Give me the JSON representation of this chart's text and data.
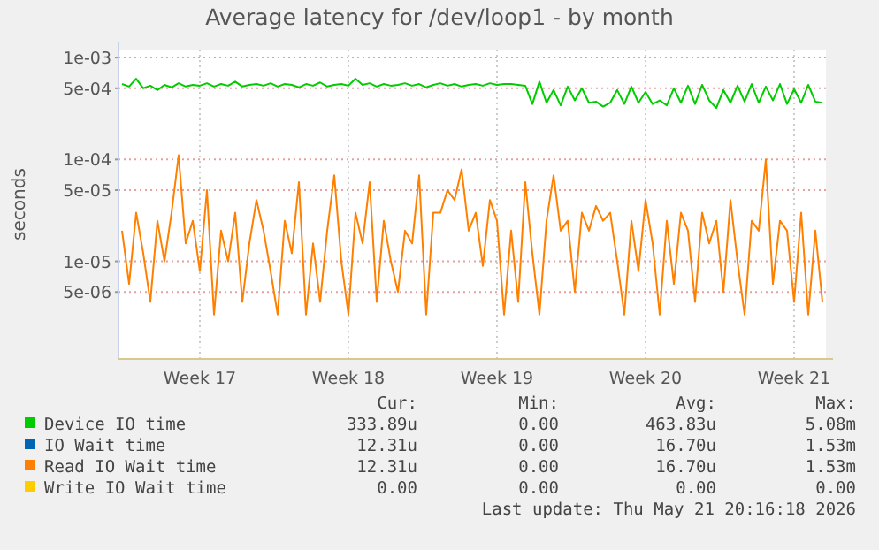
{
  "chart_data": {
    "type": "line",
    "title": "Average latency for /dev/loop1 - by month",
    "ylabel": "seconds",
    "log": "y",
    "grid": true,
    "legend": "bottom",
    "marker": "none",
    "line_style": "solid",
    "categories": [
      null,
      null,
      null,
      null,
      null,
      null,
      null,
      null,
      null,
      null,
      null,
      "Week 17",
      null,
      null,
      null,
      null,
      null,
      null,
      null,
      null,
      null,
      null,
      null,
      null,
      null,
      null,
      null,
      null,
      null,
      null,
      null,
      null,
      "Week 18",
      null,
      null,
      null,
      null,
      null,
      null,
      null,
      null,
      null,
      null,
      null,
      null,
      null,
      null,
      null,
      null,
      null,
      null,
      null,
      null,
      "Week 19",
      null,
      null,
      null,
      null,
      null,
      null,
      null,
      null,
      null,
      null,
      null,
      null,
      null,
      null,
      null,
      null,
      null,
      null,
      null,
      null,
      "Week 20",
      null,
      null,
      null,
      null,
      null,
      null,
      null,
      null,
      null,
      null,
      null,
      null,
      null,
      null,
      null,
      null,
      null,
      null,
      null,
      null,
      "Week 21",
      null,
      null,
      null,
      null
    ],
    "ylim": [
      1.1e-06,
      0.0012
    ],
    "yticks": [
      {
        "value": 0.001,
        "label": "1e-03"
      },
      {
        "value": 0.0005,
        "label": "5e-04"
      },
      {
        "value": 0.0001,
        "label": "1e-04"
      },
      {
        "value": 5e-05,
        "label": "5e-05"
      },
      {
        "value": 1e-05,
        "label": "1e-05"
      },
      {
        "value": 5e-06,
        "label": "5e-06"
      }
    ],
    "series": [
      {
        "name": "Device IO time",
        "color": "#00cc00",
        "values": [
          0.00055,
          0.00052,
          0.00062,
          0.0005,
          0.00053,
          0.00048,
          0.00054,
          0.00051,
          0.00056,
          0.00052,
          0.00054,
          0.00053,
          0.00056,
          0.00052,
          0.00055,
          0.00053,
          0.00058,
          0.00052,
          0.00054,
          0.00055,
          0.00053,
          0.00056,
          0.00052,
          0.00055,
          0.00054,
          0.00051,
          0.00055,
          0.00053,
          0.00057,
          0.00052,
          0.00054,
          0.00055,
          0.00053,
          0.00062,
          0.00054,
          0.00056,
          0.00052,
          0.00055,
          0.00053,
          0.00054,
          0.00056,
          0.00053,
          0.00055,
          0.00051,
          0.00054,
          0.00056,
          0.00053,
          0.00055,
          0.00052,
          0.00054,
          0.00055,
          0.00053,
          0.00056,
          0.00054,
          0.00055,
          0.00055,
          0.00054,
          0.00053,
          0.00035,
          0.00058,
          0.00036,
          0.00048,
          0.00034,
          0.00052,
          0.00038,
          0.0005,
          0.00036,
          0.00037,
          0.00033,
          0.00036,
          0.00048,
          0.00035,
          0.00052,
          0.00036,
          0.00046,
          0.00035,
          0.00038,
          0.00034,
          0.0005,
          0.00036,
          0.00053,
          0.00035,
          0.00054,
          0.00038,
          0.00032,
          0.00048,
          0.00036,
          0.00053,
          0.00037,
          0.00055,
          0.00036,
          0.00052,
          0.00038,
          0.00055,
          0.00035,
          0.00049,
          0.00036,
          0.00054,
          0.00037,
          0.00036
        ]
      },
      {
        "name": "IO Wait time",
        "color": "#0066b3",
        "values": [
          null,
          null,
          null,
          null,
          null,
          null,
          null,
          null,
          null,
          null,
          null,
          null,
          null,
          null,
          null,
          null,
          null,
          null,
          null,
          null,
          null,
          null,
          null,
          null,
          null,
          null,
          null,
          null,
          null,
          null,
          null,
          null,
          null,
          null,
          null,
          null,
          null,
          null,
          null,
          null,
          null,
          null,
          null,
          null,
          null,
          null,
          null,
          null,
          null,
          null,
          null,
          null,
          null,
          null,
          null,
          null,
          null,
          null,
          null,
          null,
          null,
          null,
          null,
          null,
          null,
          null,
          null,
          null,
          null,
          null,
          null,
          null,
          null,
          null,
          null,
          null,
          null,
          null,
          null,
          null,
          null,
          null,
          null,
          null,
          null,
          null,
          null,
          null,
          null,
          null,
          null,
          null,
          null,
          null,
          null,
          null,
          null,
          null,
          null,
          null
        ]
      },
      {
        "name": "Read IO Wait time",
        "color": "#ff8000",
        "values": [
          2e-05,
          6e-06,
          3e-05,
          1.2e-05,
          4e-06,
          2.5e-05,
          1e-05,
          3e-05,
          0.00011,
          1.5e-05,
          2.5e-05,
          8e-06,
          5e-05,
          3e-06,
          2e-05,
          1e-05,
          3e-05,
          4e-06,
          1.5e-05,
          4e-05,
          2e-05,
          8e-06,
          3e-06,
          2.5e-05,
          1.2e-05,
          6e-05,
          3e-06,
          1.5e-05,
          4e-06,
          2e-05,
          7e-05,
          1e-05,
          3e-06,
          3e-05,
          1.5e-05,
          6e-05,
          4e-06,
          2.5e-05,
          1e-05,
          5e-06,
          2e-05,
          1.5e-05,
          7e-05,
          3e-06,
          3e-05,
          3e-05,
          5e-05,
          4e-05,
          8e-05,
          2e-05,
          3e-05,
          9e-06,
          4e-05,
          2.5e-05,
          3e-06,
          2e-05,
          4e-06,
          6e-05,
          1.2e-05,
          3e-06,
          2.5e-05,
          7e-05,
          2e-05,
          2.5e-05,
          5e-06,
          3e-05,
          2e-05,
          3.5e-05,
          2.5e-05,
          3e-05,
          1e-05,
          3e-06,
          2.5e-05,
          8e-06,
          4e-05,
          1.5e-05,
          3e-06,
          2.5e-05,
          6e-06,
          3e-05,
          2e-05,
          4e-06,
          3e-05,
          1.5e-05,
          2.5e-05,
          5e-06,
          4e-05,
          1e-05,
          3e-06,
          2.5e-05,
          2e-05,
          0.0001,
          6e-06,
          2.5e-05,
          2e-05,
          4e-06,
          3e-05,
          3e-06,
          2e-05,
          4e-06
        ]
      },
      {
        "name": "Write IO Wait time",
        "color": "#ffcc00",
        "values": [
          null,
          null,
          null,
          null,
          null,
          null,
          null,
          null,
          null,
          null,
          null,
          null,
          null,
          null,
          null,
          null,
          null,
          null,
          null,
          null,
          null,
          null,
          null,
          null,
          null,
          null,
          null,
          null,
          null,
          null,
          null,
          null,
          null,
          null,
          null,
          null,
          null,
          null,
          null,
          null,
          null,
          null,
          null,
          null,
          null,
          null,
          null,
          null,
          null,
          null,
          null,
          null,
          null,
          null,
          null,
          null,
          null,
          null,
          null,
          null,
          null,
          null,
          null,
          null,
          null,
          null,
          null,
          null,
          null,
          null,
          null,
          null,
          null,
          null,
          null,
          null,
          null,
          null,
          null,
          null,
          null,
          null,
          null,
          null,
          null,
          null,
          null,
          null,
          null,
          null,
          null,
          null,
          null,
          null,
          null,
          null,
          null,
          null,
          null,
          null
        ]
      }
    ],
    "annotations": [
      "Cur:",
      "Min:",
      "Avg:",
      "Max:",
      "333.89u",
      "0.00",
      "463.83u",
      "5.08m",
      "12.31u",
      "0.00",
      "16.70u",
      "1.53m",
      "12.31u",
      "0.00",
      "16.70u",
      "1.53m",
      "0.00",
      "0.00",
      "0.00",
      "0.00",
      "Last update: Thu May 21 20:16:18 2026"
    ]
  }
}
